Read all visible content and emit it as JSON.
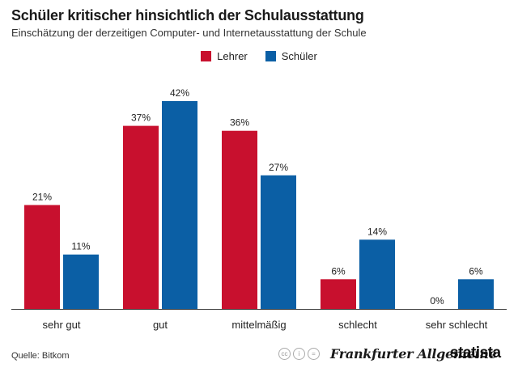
{
  "chart_data": {
    "type": "bar",
    "title": "Schüler kritischer hinsichtlich der Schulausstattung",
    "subtitle": "Einschätzung der derzeitigen Computer- und Internetausstattung der Schule",
    "categories": [
      "sehr gut",
      "gut",
      "mittelmäßig",
      "schlecht",
      "sehr schlecht"
    ],
    "series": [
      {
        "name": "Lehrer",
        "color": "#c8102e",
        "values": [
          21,
          37,
          36,
          6,
          0
        ],
        "labels": [
          "21%",
          "37%",
          "36%",
          "6%",
          "0%"
        ]
      },
      {
        "name": "Schüler",
        "color": "#0b5fa5",
        "values": [
          11,
          42,
          27,
          14,
          6
        ],
        "labels": [
          "11%",
          "42%",
          "27%",
          "14%",
          "6%"
        ]
      }
    ],
    "ylim": [
      0,
      42
    ],
    "xlabel": "",
    "ylabel": "",
    "grid": false,
    "legend_position": "top-center"
  },
  "footer": {
    "source": "Quelle: Bitkom",
    "publisher": "Frankfurter Allgemeine",
    "brand": "statista",
    "license_icons": [
      "cc",
      "i",
      "="
    ]
  }
}
